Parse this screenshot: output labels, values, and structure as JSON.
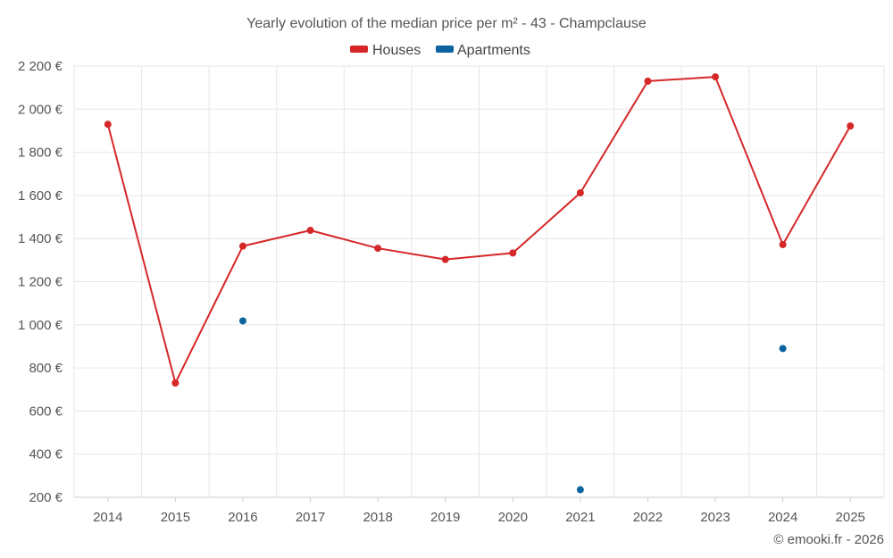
{
  "chart_data": {
    "type": "line",
    "title": "Yearly evolution of the median price per m² - 43 - Champclause",
    "categories": [
      "2014",
      "2015",
      "2016",
      "2017",
      "2018",
      "2019",
      "2020",
      "2021",
      "2022",
      "2023",
      "2024",
      "2025"
    ],
    "series": [
      {
        "name": "Houses",
        "color": "#d62728",
        "style": "line-with-markers",
        "values": [
          1930,
          730,
          1365,
          1438,
          1355,
          1303,
          1333,
          1612,
          2130,
          2150,
          1372,
          1922
        ]
      },
      {
        "name": "Apartments",
        "color": "#0b64a0",
        "style": "markers-only",
        "values": [
          null,
          null,
          1018,
          null,
          null,
          null,
          null,
          235,
          null,
          null,
          890,
          null
        ]
      }
    ],
    "y_ticks": [
      "200 €",
      "400 €",
      "600 €",
      "800 €",
      "1 000 €",
      "1 200 €",
      "1 400 €",
      "1 600 €",
      "1 800 €",
      "2 000 €",
      "2 200 €"
    ],
    "ylim": [
      200,
      2200
    ],
    "xlabel": "",
    "ylabel": "",
    "grid": true,
    "legend_position": "top-center"
  },
  "credit": "© emooki.fr - 2026"
}
